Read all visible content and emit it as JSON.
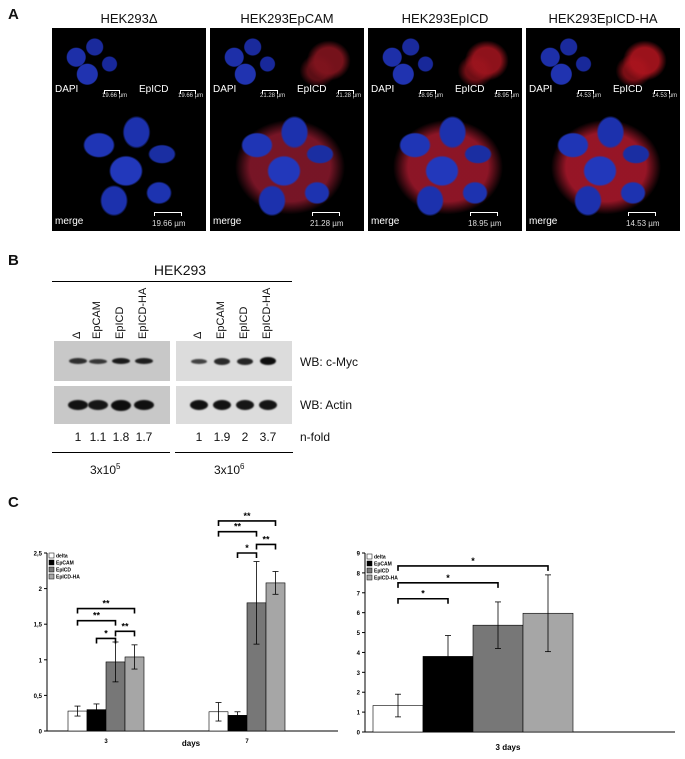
{
  "panelA": {
    "letter": "A",
    "panels": [
      {
        "title": "HEK293Δ",
        "dapi": "DAPI",
        "epicd": "EpICD",
        "merge": "merge",
        "scale": "19.66 µm",
        "small_scale": "19.66 µm",
        "membrane": false,
        "red": 0.0
      },
      {
        "title": "HEK293EpCAM",
        "dapi": "DAPI",
        "epicd": "EpICD",
        "merge": "merge",
        "scale": "21.28 µm",
        "small_scale": "21.28 µm",
        "membrane": true,
        "red": 0.5
      },
      {
        "title": "HEK293EpICD",
        "dapi": "DAPI",
        "epicd": "EpICD",
        "merge": "merge",
        "scale": "18.95 µm",
        "small_scale": "18.95 µm",
        "membrane": false,
        "red": 0.7
      },
      {
        "title": "HEK293EpICD-HA",
        "dapi": "DAPI",
        "epicd": "EpICD",
        "merge": "merge",
        "scale": "14.53 µm",
        "small_scale": "14.53 µm",
        "membrane": false,
        "red": 0.8
      }
    ]
  },
  "panelB": {
    "letter": "B",
    "header": "HEK293",
    "lanes": [
      "Δ",
      "EpCAM",
      "EpICD",
      "EpICD-HA",
      "Δ",
      "EpCAM",
      "EpICD",
      "EpICD-HA"
    ],
    "wb_cmyc": "WB: c-Myc",
    "wb_actin": "WB: Actin",
    "nfold_label": "n-fold",
    "nfold": [
      "1",
      "1.1",
      "1.8",
      "1.7",
      "1",
      "1.9",
      "2",
      "3.7"
    ],
    "cmyc_intensity": [
      0.55,
      0.45,
      0.8,
      0.75,
      0.3,
      0.6,
      0.65,
      0.95
    ],
    "actin_intensity": [
      0.9,
      0.85,
      0.95,
      0.92,
      0.9,
      0.9,
      0.85,
      0.88
    ],
    "group1_base": "3x10",
    "group1_exp": "5",
    "group2_base": "3x10",
    "group2_exp": "6"
  },
  "panelC": {
    "letter": "C",
    "colors": {
      "delta": "#ffffff",
      "EpCAM": "#000000",
      "EpICD": "#777777",
      "EpICD-HA": "#a6a6a6"
    },
    "chart_data": [
      {
        "type": "bar",
        "categories": [
          "3",
          "7"
        ],
        "xlabel": "days",
        "ylabel": "",
        "ylim": [
          0,
          2.5
        ],
        "yticks": [
          "0",
          "0,5",
          "1",
          "1,5",
          "2",
          "2,5"
        ],
        "legend": "top-left",
        "series": [
          {
            "name": "delta",
            "values": [
              0.28,
              0.27
            ],
            "errors": [
              0.07,
              0.13
            ]
          },
          {
            "name": "EpCAM",
            "values": [
              0.3,
              0.22
            ],
            "errors": [
              0.08,
              0.05
            ]
          },
          {
            "name": "EpICD",
            "values": [
              0.97,
              1.8
            ],
            "errors": [
              0.28,
              0.58
            ]
          },
          {
            "name": "EpICD-HA",
            "values": [
              1.04,
              2.08
            ],
            "errors": [
              0.17,
              0.16
            ]
          }
        ],
        "significance": [
          {
            "group": 0,
            "from": 1,
            "to": 2,
            "label": "*",
            "level": 1.3
          },
          {
            "group": 0,
            "from": 0,
            "to": 3,
            "label": "**",
            "level": 1.72
          },
          {
            "group": 0,
            "from": 0,
            "to": 2,
            "label": "**",
            "level": 1.55
          },
          {
            "group": 0,
            "from": 2,
            "to": 3,
            "label": "**",
            "level": 1.4
          },
          {
            "group": 1,
            "from": 1,
            "to": 2,
            "label": "*",
            "level": 2.5
          },
          {
            "group": 1,
            "from": 0,
            "to": 3,
            "label": "**",
            "level": 2.95
          },
          {
            "group": 1,
            "from": 0,
            "to": 2,
            "label": "**",
            "level": 2.8
          },
          {
            "group": 1,
            "from": 2,
            "to": 3,
            "label": "**",
            "level": 2.62
          }
        ]
      },
      {
        "type": "bar",
        "categories": [
          "3 days"
        ],
        "xlabel": "3 days",
        "ylabel": "",
        "ylim": [
          0,
          9
        ],
        "yticks": [
          "0",
          "1",
          "2",
          "3",
          "4",
          "5",
          "6",
          "7",
          "8",
          "9"
        ],
        "legend": "top-left",
        "series": [
          {
            "name": "delta",
            "values": [
              1.33
            ],
            "errors": [
              0.57
            ]
          },
          {
            "name": "EpCAM",
            "values": [
              3.8
            ],
            "errors": [
              1.05
            ]
          },
          {
            "name": "EpICD",
            "values": [
              5.37
            ],
            "errors": [
              1.17
            ]
          },
          {
            "name": "EpICD-HA",
            "values": [
              5.97
            ],
            "errors": [
              1.93
            ]
          }
        ],
        "significance": [
          {
            "group": 0,
            "from": 0,
            "to": 1,
            "label": "*",
            "level": 6.7
          },
          {
            "group": 0,
            "from": 0,
            "to": 2,
            "label": "*",
            "level": 7.5
          },
          {
            "group": 0,
            "from": 0,
            "to": 3,
            "label": "*",
            "level": 8.35
          }
        ]
      }
    ]
  }
}
